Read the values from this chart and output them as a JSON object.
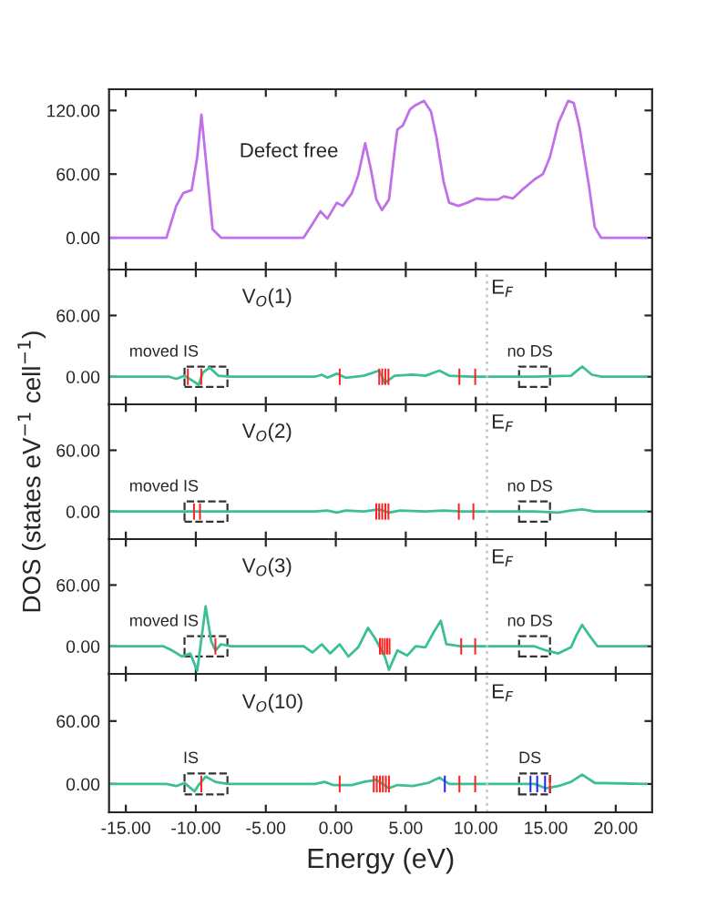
{
  "chart_data": [
    {
      "type": "line",
      "title": "Defect free",
      "xlim": [
        -16.2,
        22.6
      ],
      "ylim": [
        -30,
        140
      ],
      "tick_labels": "y",
      "xticks": [
        -15,
        -10,
        -5,
        0,
        5,
        10,
        15,
        20
      ],
      "yticks": [
        {
          "value": 0,
          "label": "0.00"
        },
        {
          "value": 60,
          "label": "60.00"
        },
        {
          "value": 120,
          "label": "120.00"
        }
      ],
      "series": [
        {
          "color": "#c070e8",
          "x": [
            -16.2,
            -12.1,
            -11.4,
            -10.9,
            -10.3,
            -9.9,
            -9.6,
            -9.3,
            -8.8,
            -8.2,
            -2.3,
            -1.67,
            -1.1,
            -0.6,
            0.07,
            0.5,
            1.15,
            1.6,
            2.1,
            2.5,
            2.9,
            3.3,
            3.8,
            4.2,
            4.4,
            4.8,
            5.3,
            5.7,
            6.3,
            6.8,
            7.2,
            7.7,
            8.1,
            8.75,
            9.4,
            10.05,
            10.7,
            11.6,
            12.0,
            12.65,
            13.3,
            14.2,
            14.8,
            15.3,
            15.9,
            16.6,
            17.0,
            17.4,
            18.1,
            18.5,
            18.95,
            22.2
          ],
          "values": [
            0,
            0,
            30,
            42,
            45,
            76,
            116,
            76,
            8,
            0,
            0,
            13,
            25,
            18,
            33,
            30,
            42,
            59,
            89,
            65,
            36,
            26,
            36,
            82,
            102,
            106,
            121,
            125,
            129,
            119,
            94,
            53,
            33,
            30,
            33,
            37,
            36,
            36,
            39,
            37,
            45,
            55,
            60,
            76,
            108,
            129,
            127,
            105,
            48,
            10,
            0,
            0
          ]
        }
      ]
    },
    {
      "type": "line",
      "title": "V$_{O}$(1)",
      "xlim": [
        -16.2,
        22.6
      ],
      "ylim": [
        -27,
        105
      ],
      "tick_labels": "y",
      "xticks": [
        -15,
        -10,
        -5,
        0,
        5,
        10,
        15,
        20
      ],
      "yticks": [
        {
          "value": 0,
          "label": "0.00"
        },
        {
          "value": 60,
          "label": "60.00"
        }
      ],
      "ref_lines": [
        {
          "axis": "x",
          "value": 10.8,
          "label": "E$_{F}$",
          "color": "#c8c8c8",
          "line_style": "dotted"
        }
      ],
      "annotations": [
        "moved IS",
        "no DS"
      ],
      "series": [
        {
          "color": "#3cbf98",
          "x": [
            -16.2,
            -11.9,
            -11.4,
            -10.8,
            -10.1,
            -9.8,
            -9.5,
            -9.0,
            -8.4,
            -7.5,
            -1.5,
            -1.0,
            -0.6,
            0.07,
            0.7,
            2.0,
            3.1,
            3.5,
            4.2,
            5.5,
            6.4,
            7.4,
            8.1,
            9.8,
            14.2,
            16.8,
            17.6,
            18.3,
            19.0,
            22.2
          ],
          "values": [
            0,
            0,
            -2,
            1,
            -5,
            -8,
            4,
            9,
            1,
            0,
            0,
            2,
            -1,
            3,
            -1,
            1,
            6,
            -6,
            1,
            2,
            1,
            6,
            1,
            0,
            0,
            1,
            10,
            2,
            0,
            0
          ]
        },
        {
          "type": "bar",
          "color": "#ff2020",
          "x": [
            -10.57,
            -9.61,
            0.28,
            3.1,
            3.32,
            3.54,
            3.76,
            8.83,
            9.96
          ],
          "base": [
            -8,
            -8,
            -8,
            -8,
            -8,
            -8,
            -8,
            -8,
            -8
          ],
          "values": [
            16,
            16,
            16,
            16,
            16,
            16,
            16,
            16,
            16
          ]
        }
      ]
    },
    {
      "type": "line",
      "title": "V$_{O}$(2)",
      "ylabel": "DOS (states eV$^{−1}$ cell$^{−1}$)",
      "xlim": [
        -16.2,
        22.6
      ],
      "ylim": [
        -27,
        105
      ],
      "tick_labels": "y",
      "xticks": [
        -15,
        -10,
        -5,
        0,
        5,
        10,
        15,
        20
      ],
      "yticks": [
        {
          "value": 0,
          "label": "0.00"
        },
        {
          "value": 60,
          "label": "60.00"
        }
      ],
      "ref_lines": [
        {
          "axis": "x",
          "value": 10.8,
          "label": "E$_{F}$",
          "color": "#c8c8c8",
          "line_style": "dotted"
        }
      ],
      "annotations": [
        "moved IS",
        "no DS"
      ],
      "series": [
        {
          "color": "#3cbf98",
          "x": [
            -16.2,
            -11.9,
            -1.5,
            -0.6,
            0.07,
            0.7,
            2.0,
            3.1,
            3.8,
            4.6,
            6.4,
            7.7,
            9.0,
            14.2,
            15.9,
            16.8,
            17.6,
            18.5,
            22.2
          ],
          "values": [
            0,
            0,
            0,
            1,
            -1,
            1,
            0,
            2,
            -1,
            1,
            0,
            1,
            0,
            0,
            -1,
            1,
            2,
            0,
            0
          ]
        },
        {
          "type": "bar",
          "color": "#ff2020",
          "x": [
            -10.13,
            -9.7,
            2.89,
            3.1,
            3.32,
            3.54,
            3.76,
            8.79,
            9.83
          ],
          "base": [
            -8,
            -8,
            -8,
            -8,
            -8,
            -8,
            -8,
            -8,
            -8
          ],
          "values": [
            16,
            16,
            16,
            16,
            16,
            16,
            16,
            16,
            16
          ]
        }
      ]
    },
    {
      "type": "line",
      "title": "V$_{O}$(3)",
      "xlim": [
        -16.2,
        22.6
      ],
      "ylim": [
        -27,
        105
      ],
      "tick_labels": "y",
      "xticks": [
        -15,
        -10,
        -5,
        0,
        5,
        10,
        15,
        20
      ],
      "yticks": [
        {
          "value": 0,
          "label": "0.00"
        },
        {
          "value": 60,
          "label": "60.00"
        }
      ],
      "ref_lines": [
        {
          "axis": "x",
          "value": 10.8,
          "label": "E$_{F}$",
          "color": "#c8c8c8",
          "line_style": "dotted"
        }
      ],
      "annotations": [
        "moved IS",
        "no DS"
      ],
      "series": [
        {
          "color": "#3cbf98",
          "x": [
            -16.2,
            -12.3,
            -11.7,
            -11.0,
            -10.4,
            -9.9,
            -9.3,
            -8.9,
            -8.6,
            -8.2,
            -7.5,
            -2.3,
            -1.67,
            -1.0,
            -0.4,
            0.28,
            0.9,
            1.6,
            2.3,
            2.8,
            3.5,
            3.8,
            4.4,
            5.1,
            5.7,
            6.4,
            7.0,
            7.5,
            7.9,
            8.9,
            14.2,
            15.0,
            15.9,
            16.8,
            17.2,
            17.6,
            18.1,
            18.7,
            22.2
          ],
          "values": [
            0,
            0,
            -4,
            -10,
            -7,
            -24,
            39,
            5,
            -4,
            2,
            0,
            0,
            -6,
            2,
            -7,
            2,
            -10,
            -1,
            18,
            8,
            -10,
            -23,
            -4,
            -9,
            0,
            -1,
            14,
            25,
            2,
            0,
            0,
            -4,
            -7,
            -1,
            11,
            21,
            11,
            0,
            0
          ]
        },
        {
          "type": "bar",
          "color": "#ff2020",
          "x": [
            -8.6,
            3.15,
            3.32,
            3.5,
            3.67,
            3.84,
            8.96,
            9.96
          ],
          "base": [
            -8,
            -8,
            -8,
            -8,
            -8,
            -8,
            -8,
            -8
          ],
          "values": [
            16,
            16,
            16,
            16,
            16,
            16,
            16,
            16
          ]
        }
      ]
    },
    {
      "type": "line",
      "title": "V$_{O}$(10)",
      "xlabel": "Energy (eV)",
      "xlim": [
        -16.2,
        22.6
      ],
      "ylim": [
        -27,
        105
      ],
      "xticks": [
        {
          "value": -15,
          "label": "-15.00"
        },
        {
          "value": -10,
          "label": "-10.00"
        },
        {
          "value": -5,
          "label": "-5.00"
        },
        {
          "value": 0,
          "label": "0.00"
        },
        {
          "value": 5,
          "label": "5.00"
        },
        {
          "value": 10,
          "label": "10.00"
        },
        {
          "value": 15,
          "label": "15.00"
        },
        {
          "value": 20,
          "label": "20.00"
        }
      ],
      "yticks": [
        {
          "value": 0,
          "label": "0.00"
        },
        {
          "value": 60,
          "label": "60.00"
        }
      ],
      "ref_lines": [
        {
          "axis": "x",
          "value": 10.8,
          "label": "E$_{F}$",
          "color": "#c8c8c8",
          "line_style": "dotted"
        }
      ],
      "annotations": [
        "IS",
        "DS"
      ],
      "series": [
        {
          "color": "#3cbf98",
          "x": [
            -16.2,
            -12.1,
            -11.4,
            -10.8,
            -10.1,
            -9.8,
            -9.3,
            -8.6,
            -7.7,
            -1.5,
            -0.8,
            -0.2,
            1.15,
            2.0,
            2.9,
            3.8,
            4.4,
            5.5,
            6.6,
            7.4,
            8.1,
            14.2,
            15.0,
            15.9,
            16.8,
            17.6,
            18.5,
            22.2
          ],
          "values": [
            0,
            0,
            -2,
            1,
            -7,
            -1,
            7,
            2,
            0,
            0,
            2,
            -1,
            -1,
            2,
            4,
            -4,
            -1,
            -2,
            1,
            6,
            0,
            0,
            -4,
            -2,
            2,
            9,
            1,
            0
          ]
        },
        {
          "type": "bar",
          "color": "#ff2020",
          "x": [
            -9.61,
            0.28,
            2.71,
            2.93,
            3.15,
            3.36,
            3.58,
            3.8,
            8.83,
            9.96,
            15.3
          ],
          "base": [
            -8,
            -8,
            -8,
            -8,
            -8,
            -8,
            -8,
            -8,
            -8,
            -8,
            -8
          ],
          "values": [
            16,
            16,
            16,
            16,
            16,
            16,
            16,
            16,
            16,
            16,
            16
          ]
        },
        {
          "type": "bar",
          "color": "#2020ff",
          "x": [
            7.79,
            13.91,
            14.39,
            14.95
          ],
          "base": [
            -8,
            -8,
            -8,
            -8
          ],
          "values": [
            16,
            16,
            16,
            16
          ]
        }
      ]
    }
  ]
}
